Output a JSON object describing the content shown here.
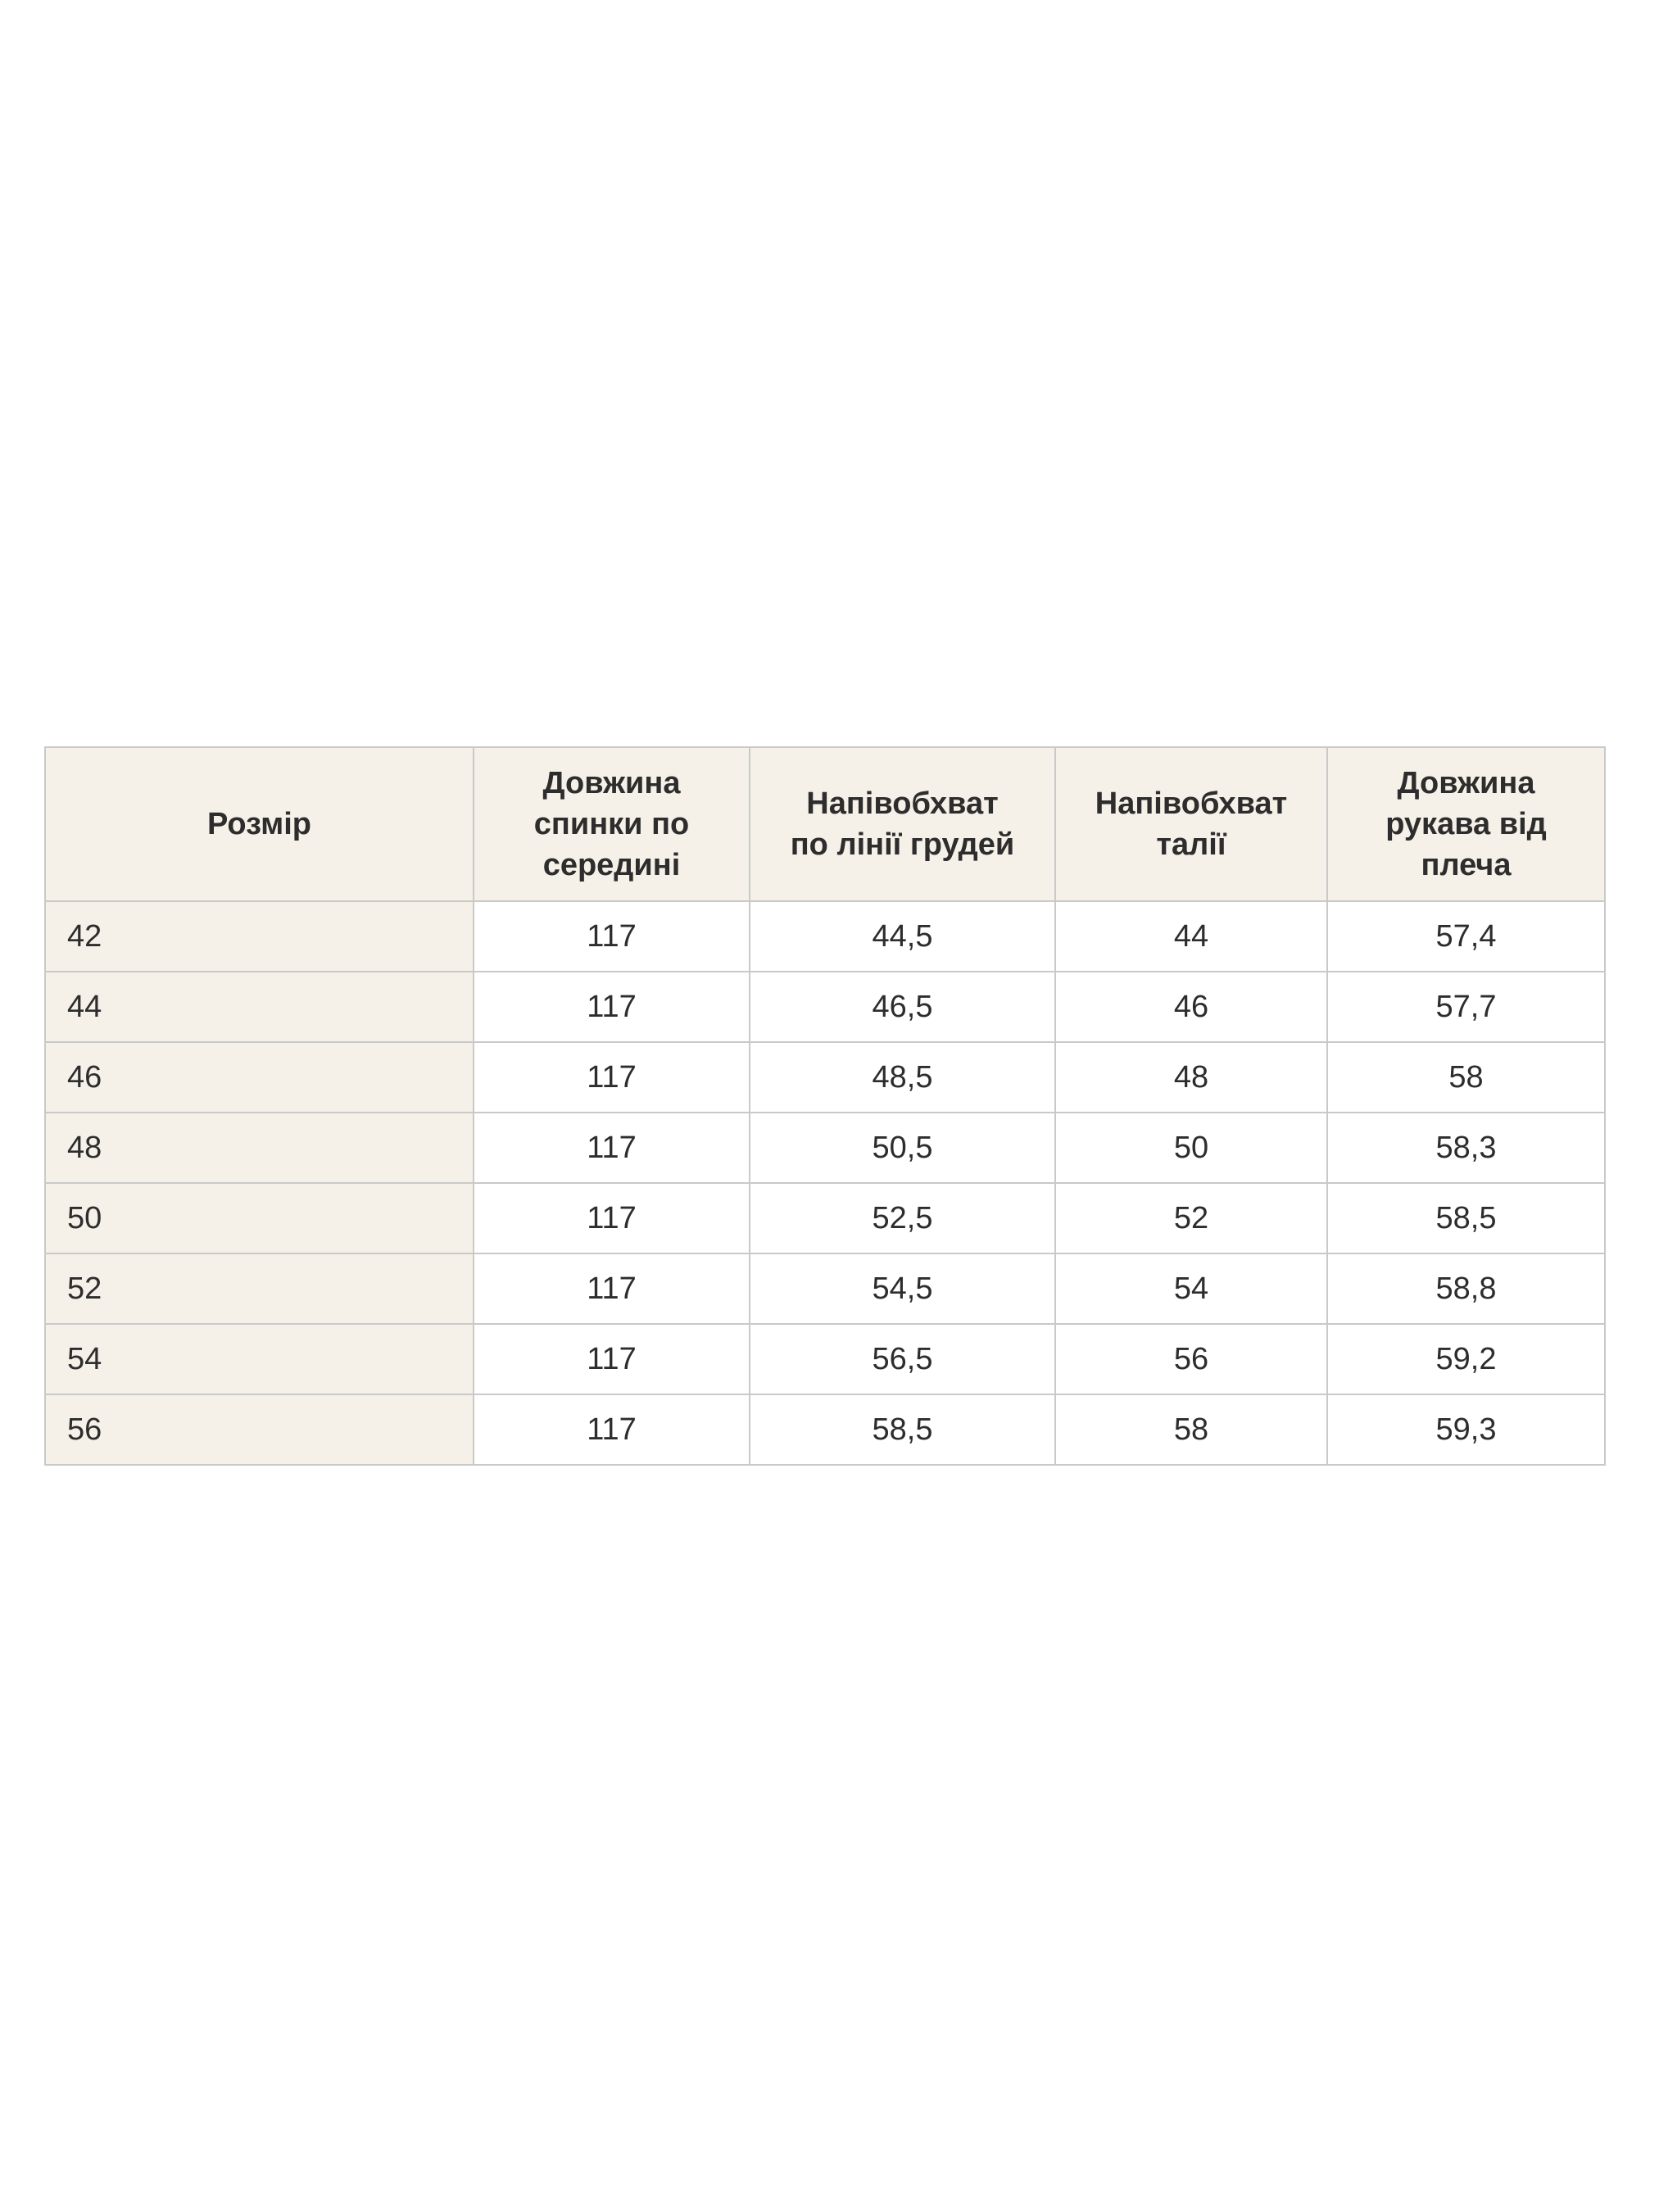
{
  "table": {
    "columns": [
      {
        "label": "Розмір"
      },
      {
        "label": "Довжина\nспинки по\nсередині"
      },
      {
        "label": "Напівобхват\nпо лінії грудей"
      },
      {
        "label": "Напівобхват\nталії"
      },
      {
        "label": "Довжина\nрукава від\nплеча"
      }
    ],
    "rows": [
      [
        "42",
        "117",
        "44,5",
        "44",
        "57,4"
      ],
      [
        "44",
        "117",
        "46,5",
        "46",
        "57,7"
      ],
      [
        "46",
        "117",
        "48,5",
        "48",
        "58"
      ],
      [
        "48",
        "117",
        "50,5",
        "50",
        "58,3"
      ],
      [
        "50",
        "117",
        "52,5",
        "52",
        "58,5"
      ],
      [
        "52",
        "117",
        "54,5",
        "54",
        "58,8"
      ],
      [
        "54",
        "117",
        "56,5",
        "56",
        "59,2"
      ],
      [
        "56",
        "117",
        "58,5",
        "58",
        "59,3"
      ]
    ],
    "colors": {
      "page_bg": "#ffffff",
      "header_bg": "#f5f1e8",
      "row_label_bg": "#f5f1e8",
      "cell_bg": "#ffffff",
      "border": "#c9c9c9",
      "text": "#2d2d2d"
    }
  }
}
